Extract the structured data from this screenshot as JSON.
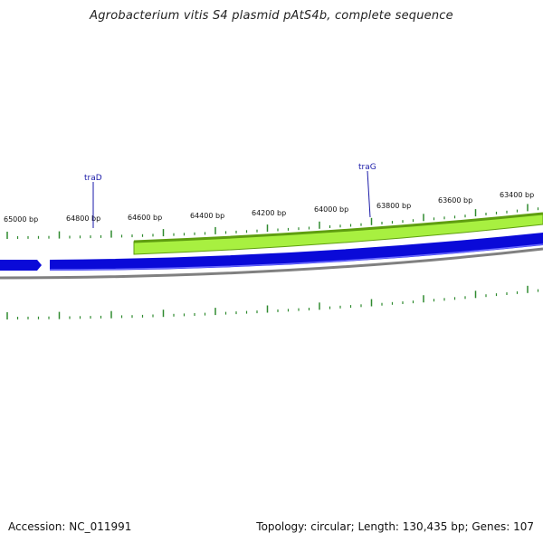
{
  "title": "Agrobacterium vitis S4 plasmid pAtS4b, complete sequence",
  "footer": {
    "accession": "Accession: NC_011991",
    "stats": "Topology: circular; Length: 130,435 bp; Genes: 107"
  },
  "tick_labels": [
    "65000 bp",
    "64800 bp",
    "64600 bp",
    "64400 bp",
    "64200 bp",
    "64000 bp",
    "63800 bp",
    "63600 bp",
    "63400 bp"
  ],
  "genes": [
    {
      "name": "traD",
      "strand": "reverse"
    },
    {
      "name": "traG",
      "strand": "forward"
    }
  ],
  "colors": {
    "reverse_feature": "#0a0ad8",
    "forward_feature": "#a8f040",
    "forward_feature_edge": "#5f9e10",
    "backbone": "#808080",
    "ticks": "#2f8a2f",
    "gene_label": "#1a1aa8"
  }
}
